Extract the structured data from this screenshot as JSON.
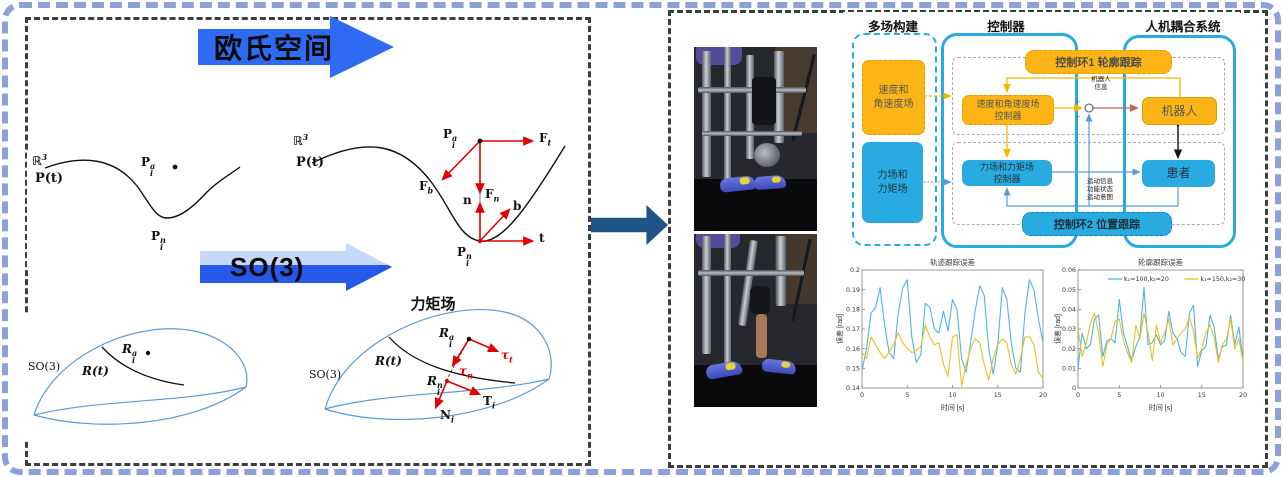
{
  "colors": {
    "outer_border": "#8CA0DB",
    "inner_border": "#3d3d3d",
    "flow_arrow_blue": "#1F5586",
    "banner_arrow_blue": "#2E6BF2",
    "vector_red": "#E00000",
    "box_yellow": "#FDB515",
    "box_blue": "#29ABE2",
    "connector_yellow": "#F5B800",
    "connector_blue": "#5B9BD5",
    "connector_red": "#C4615C",
    "plot_blue": "#4FB3E8",
    "plot_yellow": "#EDC020"
  },
  "left": {
    "arrow_euclid": "欧氏空间",
    "arrow_so3": "SO(3)",
    "panel_a": {
      "space": {
        "base": "ℝ",
        "sup": "3"
      },
      "curve": {
        "base": "P(t)"
      },
      "point_a": {
        "base": "P",
        "sup": "a",
        "sub": "i"
      },
      "point_n": {
        "base": "P",
        "sup": "n",
        "sub": "i"
      }
    },
    "panel_b": {
      "space": {
        "base": "ℝ",
        "sup": "3"
      },
      "curve": {
        "base": "P(t)"
      },
      "point_a": {
        "base": "P",
        "sup": "a",
        "sub": "i"
      },
      "point_n": {
        "base": "P",
        "sup": "n",
        "sub": "i"
      },
      "f_t": {
        "base": "F",
        "sub": "t"
      },
      "f_b": {
        "base": "F",
        "sub": "b"
      },
      "f_n": {
        "base": "F",
        "sub": "n"
      },
      "v_n": {
        "base": "n"
      },
      "v_b": {
        "base": "b"
      },
      "v_t": {
        "base": "t"
      }
    },
    "panel_c": {
      "space": {
        "base": "SO(3)"
      },
      "curve": {
        "base": "R(t)"
      },
      "point_a": {
        "base": "R",
        "sup": "a",
        "sub": "i"
      }
    },
    "panel_d": {
      "title": "力矩场",
      "space": {
        "base": "SO(3)"
      },
      "curve": {
        "base": "R(t)"
      },
      "point_a": {
        "base": "R",
        "sup": "a",
        "sub": "i"
      },
      "point_n": {
        "base": "R",
        "sup": "n",
        "sub": "i"
      },
      "tau_t": {
        "base": "τ",
        "sub": "t"
      },
      "tau_n": {
        "base": "τ",
        "sub": "n"
      },
      "cap_t": {
        "base": "T",
        "sub": "i"
      },
      "cap_n": {
        "base": "N",
        "sub": "i"
      }
    }
  },
  "diagram": {
    "headers": {
      "fields": "多场构建",
      "controller": "控制器",
      "coupling": "人机耦合系统"
    },
    "field_velocity": [
      "速度和",
      "角速度场"
    ],
    "field_force": [
      "力场和",
      "力矩场"
    ],
    "loop1_banner": "控制环1 轮廓跟踪",
    "loop2_banner": "控制环2 位置跟踪",
    "ctrl_velocity": [
      "速度和角速度场",
      "控制器"
    ],
    "ctrl_force": [
      "力场和力矩场",
      "控制器"
    ],
    "robot": "机器人",
    "patient": "患者",
    "robot_info": [
      "机器人",
      "信息"
    ],
    "motion_info": [
      "运动信息",
      "功能状态",
      "运动意图"
    ],
    "plus_top": "+",
    "plus_bottom": "+"
  },
  "chart_data": [
    {
      "type": "line",
      "title": "轨迹跟踪误差",
      "xlabel": "时间 [s]",
      "ylabel": "误差 [rad]",
      "xlim": [
        0,
        20
      ],
      "ylim": [
        0.14,
        0.2
      ],
      "xticks": [
        0,
        5,
        10,
        15,
        20
      ],
      "xtick_labels": [
        "0",
        "5",
        "10",
        "15",
        "20"
      ],
      "yticks": [
        0.14,
        0.15,
        0.16,
        0.17,
        0.18,
        0.19,
        0.2
      ],
      "ytick_labels": [
        "0.14",
        "0.15",
        "0.16",
        "0.17",
        "0.18",
        "0.19",
        "0.2"
      ],
      "grid": false,
      "legend": false,
      "x_start": 0,
      "x_step": 0.5,
      "series": [
        {
          "name": "",
          "color": "#4FB3E8",
          "values": [
            0.149,
            0.16,
            0.178,
            0.181,
            0.191,
            0.172,
            0.158,
            0.155,
            0.178,
            0.191,
            0.195,
            0.166,
            0.153,
            0.157,
            0.183,
            0.181,
            0.17,
            0.168,
            0.179,
            0.169,
            0.185,
            0.18,
            0.155,
            0.148,
            0.163,
            0.179,
            0.192,
            0.187,
            0.16,
            0.147,
            0.162,
            0.191,
            0.185,
            0.163,
            0.15,
            0.148,
            0.178,
            0.195,
            0.19,
            0.175,
            0.163
          ]
        },
        {
          "name": "",
          "color": "#EDC020",
          "values": [
            0.158,
            0.155,
            0.166,
            0.162,
            0.158,
            0.155,
            0.158,
            0.162,
            0.168,
            0.163,
            0.16,
            0.158,
            0.159,
            0.161,
            0.172,
            0.166,
            0.162,
            0.163,
            0.152,
            0.146,
            0.166,
            0.167,
            0.141,
            0.152,
            0.16,
            0.165,
            0.163,
            0.152,
            0.144,
            0.155,
            0.162,
            0.165,
            0.163,
            0.152,
            0.147,
            0.155,
            0.166,
            0.166,
            0.162,
            0.148,
            0.145
          ]
        }
      ]
    },
    {
      "type": "line",
      "title": "轮廓跟踪误差",
      "xlabel": "时间 [s]",
      "ylabel": "误差 [rad]",
      "xlim": [
        0,
        20
      ],
      "ylim": [
        0,
        0.06
      ],
      "xticks": [
        0,
        5,
        10,
        15,
        20
      ],
      "xtick_labels": [
        "0",
        "5",
        "10",
        "15",
        "20"
      ],
      "yticks": [
        0,
        0.01,
        0.02,
        0.03,
        0.04,
        0.05,
        0.06
      ],
      "ytick_labels": [
        "0",
        "0.01",
        "0.02",
        "0.03",
        "0.04",
        "0.05",
        "0.06"
      ],
      "grid": false,
      "legend": true,
      "x_start": 0,
      "x_step": 0.5,
      "series": [
        {
          "name": "k₁=100,k₂=20",
          "color": "#4FB3E8",
          "values": [
            0.01,
            0.028,
            0.02,
            0.022,
            0.035,
            0.037,
            0.016,
            0.024,
            0.025,
            0.023,
            0.045,
            0.028,
            0.021,
            0.014,
            0.021,
            0.026,
            0.051,
            0.022,
            0.023,
            0.027,
            0.022,
            0.024,
            0.039,
            0.028,
            0.025,
            0.018,
            0.016,
            0.038,
            0.042,
            0.011,
            0.019,
            0.021,
            0.037,
            0.031,
            0.015,
            0.021,
            0.022,
            0.037,
            0.022,
            0.031,
            0.014
          ]
        },
        {
          "name": "k₁=150,k₂=30",
          "color": "#EDC020",
          "values": [
            0.03,
            0.016,
            0.023,
            0.033,
            0.038,
            0.028,
            0.011,
            0.022,
            0.025,
            0.034,
            0.035,
            0.024,
            0.018,
            0.013,
            0.032,
            0.025,
            0.038,
            0.028,
            0.014,
            0.032,
            0.023,
            0.028,
            0.035,
            0.022,
            0.025,
            0.028,
            0.03,
            0.036,
            0.029,
            0.015,
            0.02,
            0.028,
            0.032,
            0.026,
            0.013,
            0.022,
            0.025,
            0.035,
            0.02,
            0.025,
            0.013
          ]
        }
      ]
    }
  ]
}
